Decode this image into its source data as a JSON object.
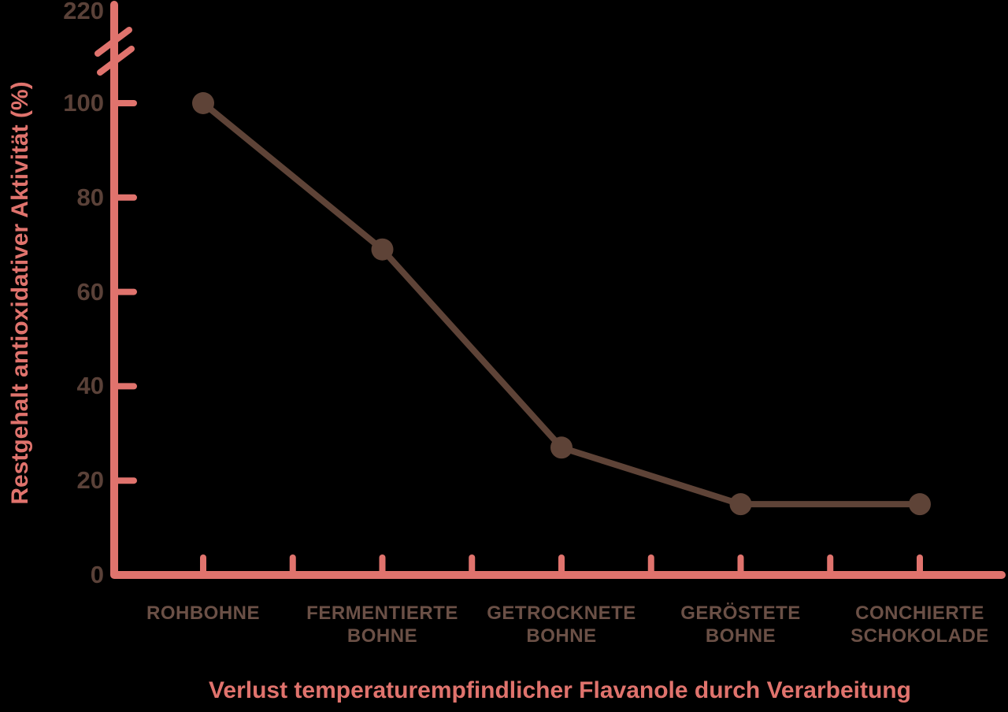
{
  "colors": {
    "background": "#000000",
    "axis": "#e0736d",
    "line": "#5e4337",
    "marker": "#5e4337",
    "y_tick_label": "#5a4138",
    "category_label": "#6b5046",
    "title": "#e0736d"
  },
  "chart_data": {
    "type": "line",
    "title": "Verlust temperaturempfindlicher Flavanole durch Verarbeitung",
    "ylabel": "Restgehalt antioxidativer Aktivität (%)",
    "xlabel": "",
    "categories": [
      "ROHBOHNE",
      "FERMENTIERTE BOHNE",
      "GETROCKNETE BOHNE",
      "GERÖSTETE BOHNE",
      "CONCHIERTE SCHOKOLADE"
    ],
    "series": [
      {
        "name": "Restgehalt antioxidativer Aktivität",
        "values": [
          100,
          69,
          27,
          15,
          15
        ]
      }
    ],
    "y_ticks": [
      0,
      20,
      40,
      60,
      80,
      100
    ],
    "y_axis_top_label": "220",
    "axis_break": {
      "present": true,
      "between": [
        100,
        220
      ]
    },
    "ylim": [
      0,
      120
    ],
    "grid": false,
    "legend": null
  }
}
